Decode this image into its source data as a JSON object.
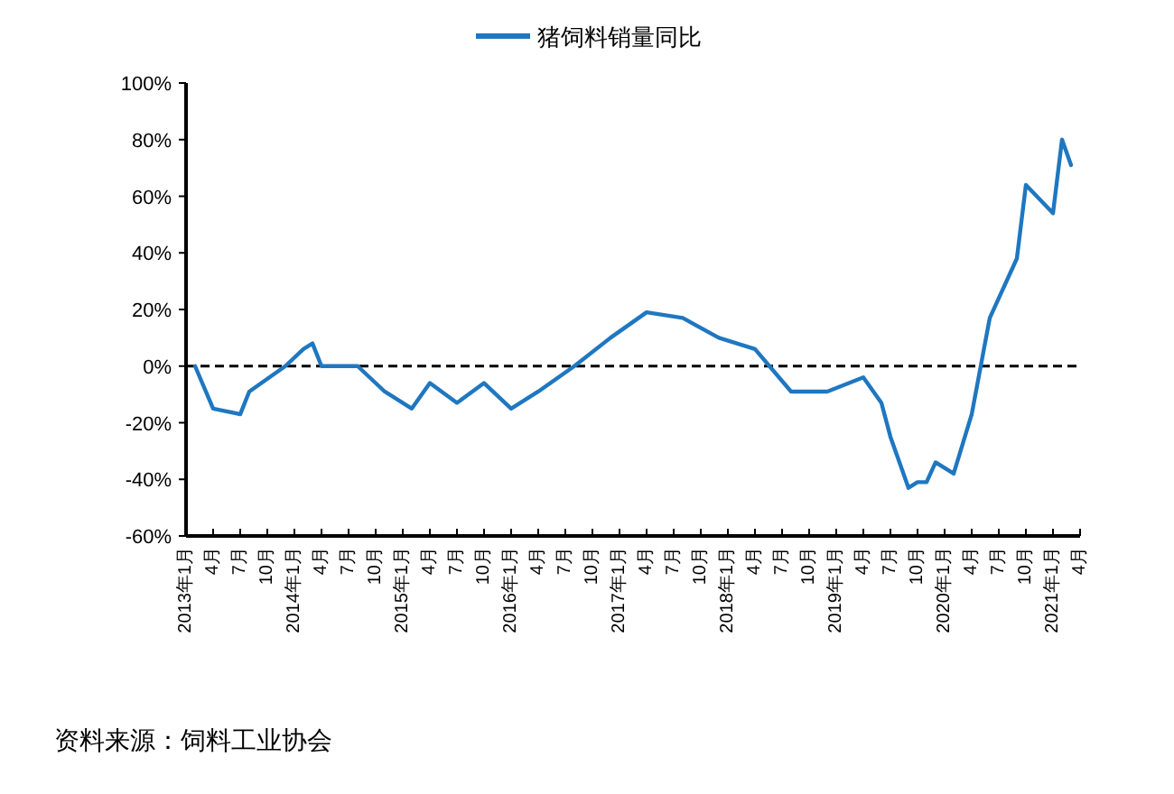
{
  "chart_data": {
    "type": "line",
    "x": [
      "2013-02",
      "2013-04",
      "2013-07",
      "2013-08",
      "2013-12",
      "2014-02",
      "2014-03",
      "2014-04",
      "2014-08",
      "2014-11",
      "2015-02",
      "2015-04",
      "2015-07",
      "2015-10",
      "2016-01",
      "2016-04",
      "2016-08",
      "2016-12",
      "2017-04",
      "2017-08",
      "2017-12",
      "2018-04",
      "2018-08",
      "2018-12",
      "2019-04",
      "2019-06",
      "2019-07",
      "2019-09",
      "2019-10",
      "2019-11",
      "2019-12",
      "2020-02",
      "2020-04",
      "2020-06",
      "2020-09",
      "2020-10",
      "2021-01",
      "2021-02",
      "2021-03"
    ],
    "series": [
      {
        "name": "猪饲料销量同比",
        "color": "#1f77c0",
        "values": [
          0,
          -15,
          -17,
          -9,
          0,
          6,
          8,
          0,
          0,
          -9,
          -15,
          -6,
          -13,
          -6,
          -15,
          -9,
          0,
          10,
          19,
          17,
          10,
          6,
          -9,
          -9,
          -4,
          -13,
          -25,
          -43,
          -41,
          -41,
          -34,
          -38,
          -17,
          17,
          38,
          64,
          54,
          80,
          71
        ]
      }
    ],
    "xlim": [
      "2013-01",
      "2021-04"
    ],
    "xticks": [
      {
        "value": "2013-01",
        "label": "2013年1月"
      },
      {
        "value": "2013-04",
        "label": "4月"
      },
      {
        "value": "2013-07",
        "label": "7月"
      },
      {
        "value": "2013-10",
        "label": "10月"
      },
      {
        "value": "2014-01",
        "label": "2014年1月"
      },
      {
        "value": "2014-04",
        "label": "4月"
      },
      {
        "value": "2014-07",
        "label": "7月"
      },
      {
        "value": "2014-10",
        "label": "10月"
      },
      {
        "value": "2015-01",
        "label": "2015年1月"
      },
      {
        "value": "2015-04",
        "label": "4月"
      },
      {
        "value": "2015-07",
        "label": "7月"
      },
      {
        "value": "2015-10",
        "label": "10月"
      },
      {
        "value": "2016-01",
        "label": "2016年1月"
      },
      {
        "value": "2016-04",
        "label": "4月"
      },
      {
        "value": "2016-07",
        "label": "7月"
      },
      {
        "value": "2016-10",
        "label": "10月"
      },
      {
        "value": "2017-01",
        "label": "2017年1月"
      },
      {
        "value": "2017-04",
        "label": "4月"
      },
      {
        "value": "2017-07",
        "label": "7月"
      },
      {
        "value": "2017-10",
        "label": "10月"
      },
      {
        "value": "2018-01",
        "label": "2018年1月"
      },
      {
        "value": "2018-04",
        "label": "4月"
      },
      {
        "value": "2018-07",
        "label": "7月"
      },
      {
        "value": "2018-10",
        "label": "10月"
      },
      {
        "value": "2019-01",
        "label": "2019年1月"
      },
      {
        "value": "2019-04",
        "label": "4月"
      },
      {
        "value": "2019-07",
        "label": "7月"
      },
      {
        "value": "2019-10",
        "label": "10月"
      },
      {
        "value": "2020-01",
        "label": "2020年1月"
      },
      {
        "value": "2020-04",
        "label": "4月"
      },
      {
        "value": "2020-07",
        "label": "7月"
      },
      {
        "value": "2020-10",
        "label": "10月"
      },
      {
        "value": "2021-01",
        "label": "2021年1月"
      },
      {
        "value": "2021-04",
        "label": "4月"
      }
    ],
    "ylim": [
      -60,
      100
    ],
    "yticks": [
      {
        "value": -60,
        "label": "-60%"
      },
      {
        "value": -40,
        "label": "-40%"
      },
      {
        "value": -20,
        "label": "-20%"
      },
      {
        "value": 0,
        "label": "0%"
      },
      {
        "value": 20,
        "label": "20%"
      },
      {
        "value": 40,
        "label": "40%"
      },
      {
        "value": 60,
        "label": "60%"
      },
      {
        "value": 80,
        "label": "80%"
      },
      {
        "value": 100,
        "label": "100%"
      }
    ],
    "ref_lines": [
      {
        "axis": "y",
        "value": 0,
        "color": "#000000",
        "line_style": "dashed"
      }
    ],
    "grid": false,
    "legend": "top",
    "marker": "none",
    "line_style": "solid",
    "annotations": [
      "资料来源：饲料工业协会"
    ]
  }
}
